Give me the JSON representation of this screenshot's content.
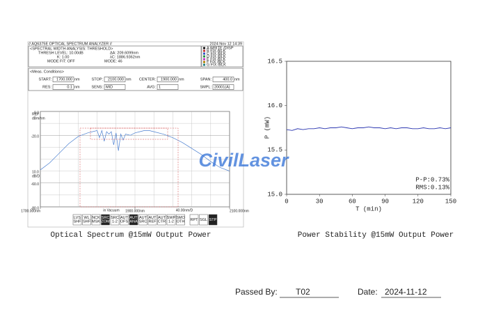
{
  "osa": {
    "model": "// AQ6375E OPTICAL SPECTRUM ANALYZER //",
    "datetime": "2024 Nov 12 14:39",
    "analysis": "<SPECTRAL WIDTH ANALYSIS: THRESHOLD>",
    "thresh": "THRESH LEVEL: 10.00dB",
    "k": "K:  1.00",
    "mode_fit": "MODE FIT:  OFF",
    "delta": "ΔA:  209.6099nm",
    "center_wl": "λC:  1886.9362nm",
    "mode": "MODE:  46",
    "traces": [
      "A WRITE /DISP",
      "B FIX /BLK",
      "C FIX /BLK",
      "D FIX /BLK",
      "E FIX /BLK",
      "F FIX /BLK",
      "G FIX /BLK"
    ],
    "meas_title": "<Meas. Conditions>",
    "meas": [
      {
        "label": "START:",
        "value": "1700.000",
        "unit": "nm"
      },
      {
        "label": "STOP:",
        "value": "2100.000",
        "unit": "nm"
      },
      {
        "label": "CENTER:",
        "value": "1900.000",
        "unit": "nm"
      },
      {
        "label": "SPAN:",
        "value": "400.0",
        "unit": "nm"
      },
      {
        "label": "RES:",
        "value": "0.1",
        "unit": "nm"
      },
      {
        "label": "SENS:",
        "value": "MID",
        "unit": ""
      },
      {
        "label": "AVG:",
        "value": "1",
        "unit": ""
      },
      {
        "label": "SMPL:",
        "value": "20001(A)",
        "unit": ""
      }
    ],
    "softkeys": [
      [
        "LVS",
        "SHF"
      ],
      [
        "WL",
        "SHF"
      ],
      [
        "NCK",
        "MSK"
      ],
      [
        "SRC",
        "ZOM"
      ],
      [
        "SRC",
        "1-2"
      ],
      [
        "AUT",
        "OFS"
      ],
      [
        "AUT",
        "ANA"
      ],
      [
        "AUT",
        "SRC"
      ],
      [
        "AUT",
        "REF"
      ],
      [
        "AUT",
        "CTR"
      ],
      [
        "SWP",
        "1-2"
      ],
      [
        "SMO",
        "OTH"
      ],
      [
        "RPT"
      ],
      [
        "SGL"
      ],
      [
        "STP"
      ]
    ]
  },
  "chart_data": [
    {
      "type": "line",
      "title": "Optical Spectrum @15mW Output Power",
      "x": [
        1700,
        1720,
        1740,
        1760,
        1780,
        1800,
        1810,
        1820,
        1825,
        1830,
        1835,
        1840,
        1845,
        1850,
        1855,
        1860,
        1865,
        1870,
        1875,
        1880,
        1890,
        1900,
        1910,
        1920,
        1930,
        1940,
        1960,
        1980,
        2000,
        2020,
        2040,
        2060,
        2080,
        2100
      ],
      "series": [
        {
          "color": "#4a7fd0",
          "values": [
            -49,
            -43,
            -35,
            -27,
            -21,
            -18,
            -17,
            -16,
            -22,
            -16,
            -25,
            -17,
            -19,
            -17,
            -28,
            -18,
            -33,
            -19,
            -24,
            -19,
            -20,
            -18,
            -17,
            -16,
            -16,
            -17,
            -19,
            -22,
            -26,
            -31,
            -36,
            -42,
            -47,
            -50
          ]
        }
      ],
      "xlim": [
        1700,
        2100
      ],
      "xticks": [
        {
          "value": 1700,
          "label": "1700.000nm"
        },
        {
          "value": 1900,
          "label": "1900.000nm"
        },
        {
          "value": 2100,
          "label": "2100.000nm"
        }
      ],
      "ylim": [
        -80,
        0
      ],
      "yticks": [
        {
          "value": 0,
          "label": "0.0"
        },
        {
          "value": -20,
          "label": "-20.0"
        },
        {
          "value": -60,
          "label": "-60.0"
        },
        {
          "value": -80,
          "label": "-80.0"
        }
      ],
      "annotations": [
        "REF",
        "dBm/nm",
        "10.0",
        "dB/D",
        "in Vacuum",
        "40.00nm/D"
      ],
      "grid": true
    },
    {
      "type": "line",
      "title": "Power Stability @15mW Output Power",
      "x": [
        0,
        5,
        10,
        15,
        20,
        25,
        30,
        35,
        40,
        45,
        50,
        55,
        60,
        65,
        70,
        75,
        80,
        85,
        90,
        95,
        100,
        105,
        110,
        115,
        120,
        125,
        130,
        135,
        140,
        145,
        150
      ],
      "series": [
        {
          "color": "#2a35b0",
          "values": [
            15.73,
            15.72,
            15.74,
            15.73,
            15.74,
            15.74,
            15.75,
            15.74,
            15.75,
            15.75,
            15.76,
            15.75,
            15.74,
            15.75,
            15.75,
            15.76,
            15.75,
            15.75,
            15.74,
            15.75,
            15.74,
            15.75,
            15.75,
            15.74,
            15.74,
            15.75,
            15.74,
            15.74,
            15.75,
            15.74,
            15.75
          ]
        }
      ],
      "xlim": [
        0,
        150
      ],
      "xticks": [
        0,
        30,
        60,
        90,
        120,
        150
      ],
      "ylim": [
        15.0,
        16.5
      ],
      "yticks": [
        {
          "value": 15.0,
          "label": "15.0"
        },
        {
          "value": 15.5,
          "label": "15.5"
        },
        {
          "value": 16.0,
          "label": "16.0"
        },
        {
          "value": 16.5,
          "label": "16.5"
        }
      ],
      "xlabel": "T (min)",
      "ylabel": "P (mW)",
      "annotations": [
        "P-P:0.73%",
        "RMS:0.13%"
      ],
      "grid": false
    }
  ],
  "watermark": "CivilLaser",
  "footer": {
    "passed_label": "Passed By:",
    "passed_value": "T02",
    "date_label": "Date:",
    "date_value": "2024-11-12"
  }
}
